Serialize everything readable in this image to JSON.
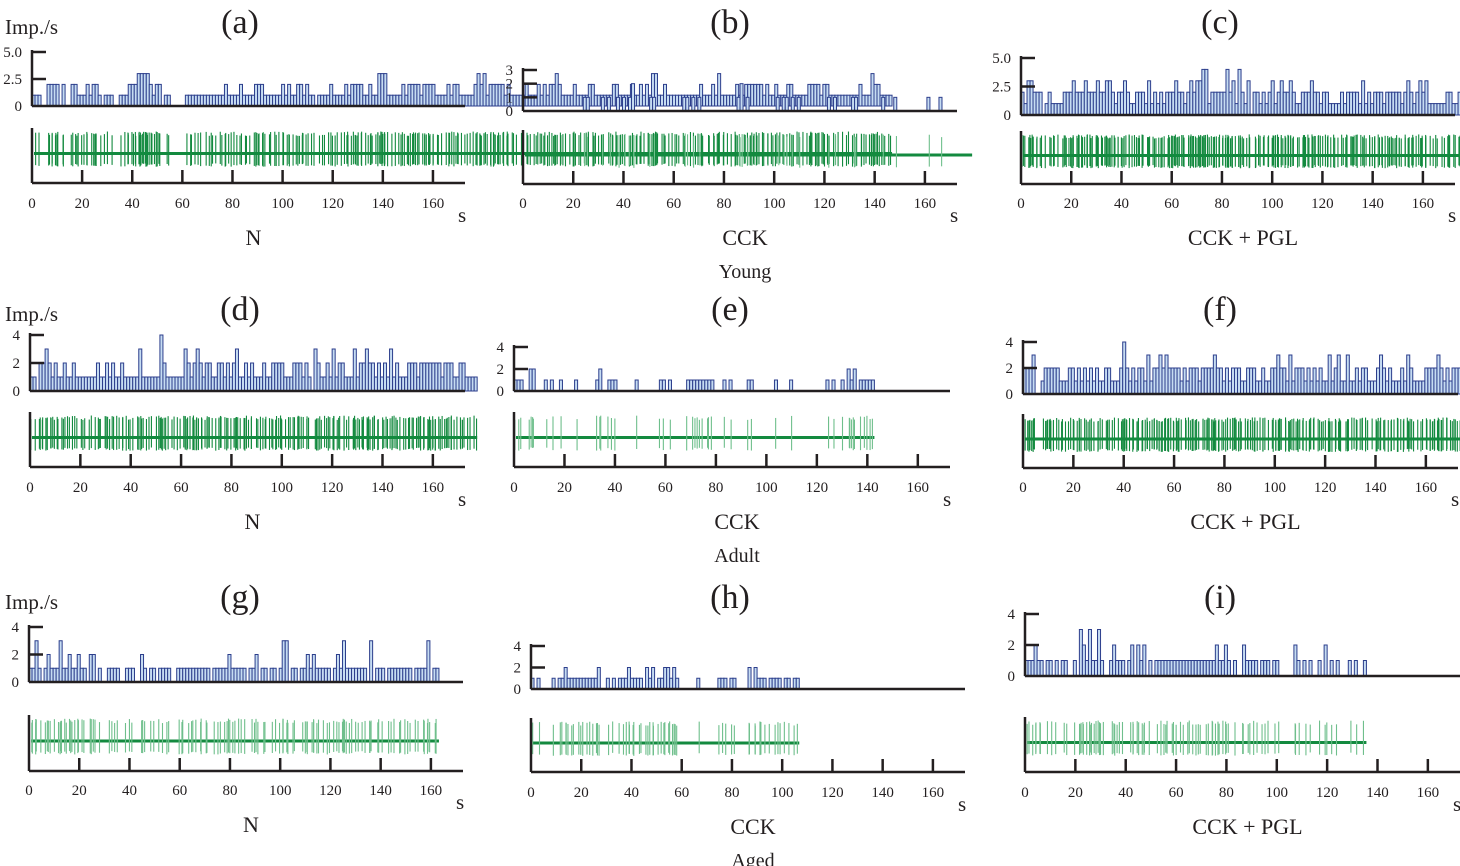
{
  "figure": {
    "y_unit_label": "Imp./s",
    "x_unit_label": "s",
    "groups": [
      "Young",
      "Adult",
      "Aged"
    ],
    "colors": {
      "hist_fill": "#c6dcf2",
      "hist_edge": "#2c3e8c",
      "trace": "#138a3f",
      "trace_light": "#6fbf8c",
      "axis": "#231f20"
    }
  },
  "chart_data": [
    {
      "panel": "(a)",
      "type": "bar",
      "condition": "N",
      "group": "Young",
      "show_ylabel": true,
      "xlabel": "s",
      "ylabel": "Imp./s",
      "xlim": [
        0,
        168
      ],
      "ylim": [
        0,
        5
      ],
      "yticks": [
        "0",
        "2.5",
        "5.0"
      ],
      "ytick_values": [
        0,
        2.5,
        5
      ],
      "xticks": [
        0,
        20,
        40,
        60,
        80,
        100,
        120,
        140,
        160
      ],
      "bin_width_s": 1.2,
      "values": "1110022220200221112122101110011122233332122011000001111111111111211112111122211111121211221211011112111121222211211333111112122221222211112122111112323122222121111121112121223211112111122111111221111211212133112111111111112111213111112112222221211211122111112222122111111111121113221111"
    },
    {
      "panel": "(b)",
      "type": "bar",
      "condition": "CCK",
      "group": "Young",
      "show_ylabel": false,
      "xlabel": "s",
      "ylabel": "",
      "xlim": [
        0,
        168
      ],
      "ylim": [
        0,
        3
      ],
      "yticks": [
        "0",
        "1",
        "2",
        "3"
      ],
      "ytick_values": [
        0,
        1,
        2,
        3
      ],
      "xticks": [
        0,
        20,
        40,
        60,
        80,
        100,
        120,
        140,
        160
      ],
      "bin_width_s": 1.2,
      "values": "00000000000000000000110000101001010120000011000000000110101000000000000120100000000010110101000000000101000001100000000100010000000000100010000000000"
    },
    {
      "panel": "(c)",
      "type": "bar",
      "condition": "CCK + PGL",
      "group": "Young",
      "show_ylabel": true,
      "show_ylabel_text": false,
      "xlabel": "s",
      "ylabel": "Imp./s",
      "xlim": [
        0,
        168
      ],
      "ylim": [
        0,
        5
      ],
      "yticks": [
        "0",
        "2.5",
        "5.0"
      ],
      "ytick_values": [
        0,
        2.5,
        5
      ],
      "xticks": [
        0,
        20,
        40,
        60,
        80,
        100,
        120,
        140,
        160
      ],
      "bin_width_s": 1.2,
      "values": "2133222012111122232223222322332122321122213121212223221232334412222242314213022121231232232112223221221111212222131212221222221232123231111112211212222111113312222121"
    },
    {
      "panel": "(d)",
      "type": "bar",
      "condition": "N",
      "group": "Adult",
      "show_ylabel": true,
      "xlabel": "s",
      "ylabel": "Imp./s",
      "xlim": [
        0,
        168
      ],
      "ylim": [
        0,
        4
      ],
      "yticks": [
        "0",
        "2",
        "4"
      ],
      "ytick_values": [
        0,
        2,
        4
      ],
      "xticks": [
        0,
        20,
        40,
        60,
        80,
        100,
        120,
        140,
        160
      ],
      "bin_width_s": 1.2,
      "values": "1102232121121121111111211212112111113111111421111113212321221122121231121211121122221112221210321121312211131223221212131211122212222222122211221111"
    },
    {
      "panel": "(e)",
      "type": "bar",
      "condition": "CCK",
      "group": "Adult",
      "show_ylabel": false,
      "xlabel": "s",
      "ylabel": "",
      "xlim": [
        0,
        168
      ],
      "ylim": [
        0,
        4
      ],
      "yticks": [
        "0",
        "2",
        "4"
      ],
      "ytick_values": [
        0,
        2,
        4
      ],
      "xticks": [
        0,
        20,
        40,
        60,
        80,
        100,
        120,
        140,
        160
      ],
      "bin_width_s": 1.2,
      "values": "11100220001010010000100000012001110000001000000011010000011111111100010100000110000000100001000000000001010010212011111"
    },
    {
      "panel": "(f)",
      "type": "bar",
      "condition": "CCK + PGL",
      "group": "Adult",
      "show_ylabel": false,
      "xlabel": "s",
      "ylabel": "",
      "xlim": [
        0,
        168
      ],
      "ylim": [
        0,
        4
      ],
      "yticks": [
        "0",
        "2",
        "4"
      ],
      "ytick_values": [
        0,
        2,
        4
      ],
      "xticks": [
        0,
        20,
        40,
        60,
        80,
        100,
        120,
        140,
        160
      ],
      "bin_width_s": 1.2,
      "values": "2223001222221112212121212112211124212122131223232222121222122223221212221122211211223221312221212121131231131121221112321211121321111222232121222"
    },
    {
      "panel": "(g)",
      "type": "bar",
      "condition": "N",
      "group": "Aged",
      "show_ylabel": true,
      "xlabel": "s",
      "ylabel": "Imp./s",
      "xlim": [
        0,
        168
      ],
      "ylim": [
        0,
        4
      ],
      "yticks": [
        "0",
        "2",
        "4"
      ],
      "ytick_values": [
        0,
        2,
        4
      ],
      "xticks": [
        0,
        20,
        40,
        60,
        80,
        100,
        120,
        140,
        160
      ],
      "bin_width_s": 1.2,
      "values": "1131012111311211211022010011110011100210110111100111111111110111112111110112011011013301101121211111012131111111030111011111111011113011"
    },
    {
      "panel": "(h)",
      "type": "bar",
      "condition": "CCK",
      "group": "Aged",
      "show_ylabel": false,
      "xlabel": "s",
      "ylabel": "",
      "xlim": [
        0,
        168
      ],
      "ylim": [
        0,
        4
      ],
      "yticks": [
        "0",
        "2",
        "4"
      ],
      "ytick_values": [
        0,
        2,
        4
      ],
      "xticks": [
        0,
        20,
        40,
        60,
        80,
        100,
        120,
        140,
        160
      ],
      "bin_width_s": 1.2,
      "values": "10100001011211111111112001010111211110212011221210000001000000111011000020211101111011011"
    },
    {
      "panel": "(i)",
      "type": "bar",
      "condition": "CCK + PGL",
      "group": "Aged",
      "show_ylabel": false,
      "xlabel": "s",
      "ylabel": "",
      "xlim": [
        0,
        168
      ],
      "ylim": [
        0,
        4
      ],
      "yticks": [
        "0",
        "2",
        "4"
      ],
      "ytick_values": [
        0,
        2,
        4
      ],
      "xticks": [
        0,
        20,
        40,
        60,
        80,
        100,
        120,
        140,
        160
      ],
      "bin_width_s": 1.2,
      "values": "11121101101011001032131131001211101202120101111111111111111111121121010021111011101100000210101001020101000101001"
    }
  ]
}
